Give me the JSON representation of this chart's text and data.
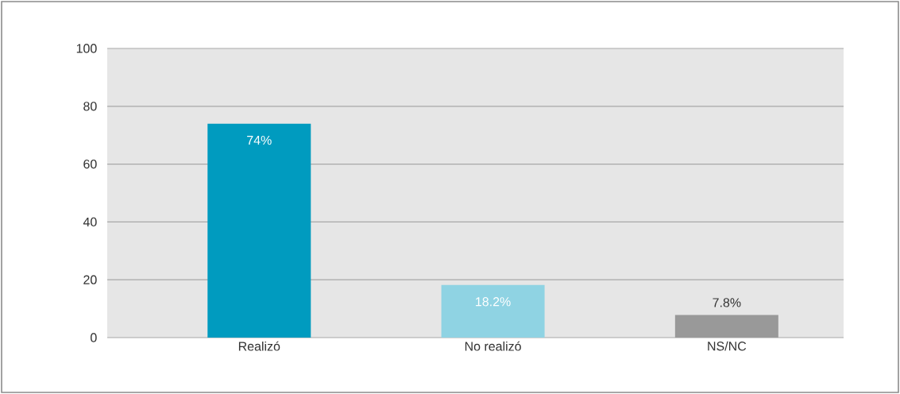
{
  "chart_data": {
    "type": "bar",
    "categories": [
      "Realizó",
      "No realizó",
      "NS/NC"
    ],
    "values": [
      74,
      18.2,
      7.8
    ],
    "colors": [
      "#009bbf",
      "#8fd3e3",
      "#999999"
    ],
    "value_labels": [
      "74%",
      "18.2%",
      "7.8%"
    ],
    "ylim": [
      0,
      100
    ],
    "yticks": [
      0,
      20,
      40,
      60,
      80,
      100
    ],
    "grid": "y"
  }
}
